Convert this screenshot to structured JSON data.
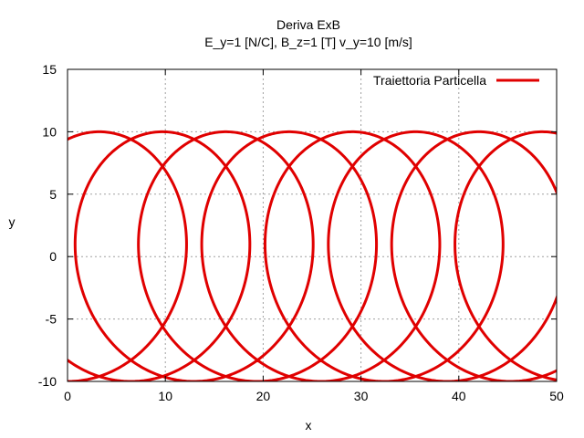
{
  "chart_data": {
    "type": "line",
    "title": "Deriva ExB",
    "subtitle": "E_y=1 [N/C], B_z=1 [T] v_y=10 [m/s]",
    "xlabel": "x",
    "ylabel": "y",
    "xlim": [
      0,
      50
    ],
    "ylim": [
      -10,
      15
    ],
    "xticks": [
      0,
      10,
      20,
      30,
      40,
      50
    ],
    "yticks": [
      -10,
      -5,
      0,
      5,
      10,
      15
    ],
    "grid": true,
    "legend_position": "top-right",
    "series": [
      {
        "name": "Traiettoria Particella",
        "color": "#e00000",
        "curve": "trochoid",
        "equation": "x = t + 10*sin(t), y = 10*(1 - cos(t)) - 9 ... approximated as loops of radius ~10 drifting +x",
        "x": [
          0,
          2.6,
          6.0,
          11.6,
          17.5,
          21.5,
          22.6,
          21.0,
          15.0,
          9.0,
          6.3,
          6.5,
          9.5,
          15.0,
          18.0
        ],
        "y": [
          0,
          6.0,
          9.6,
          11.0,
          9.5,
          5.0,
          0.0,
          -5.0,
          -9.0,
          -5.5,
          0.0,
          5.0,
          9.5,
          11.0,
          11.0
        ]
      }
    ]
  }
}
